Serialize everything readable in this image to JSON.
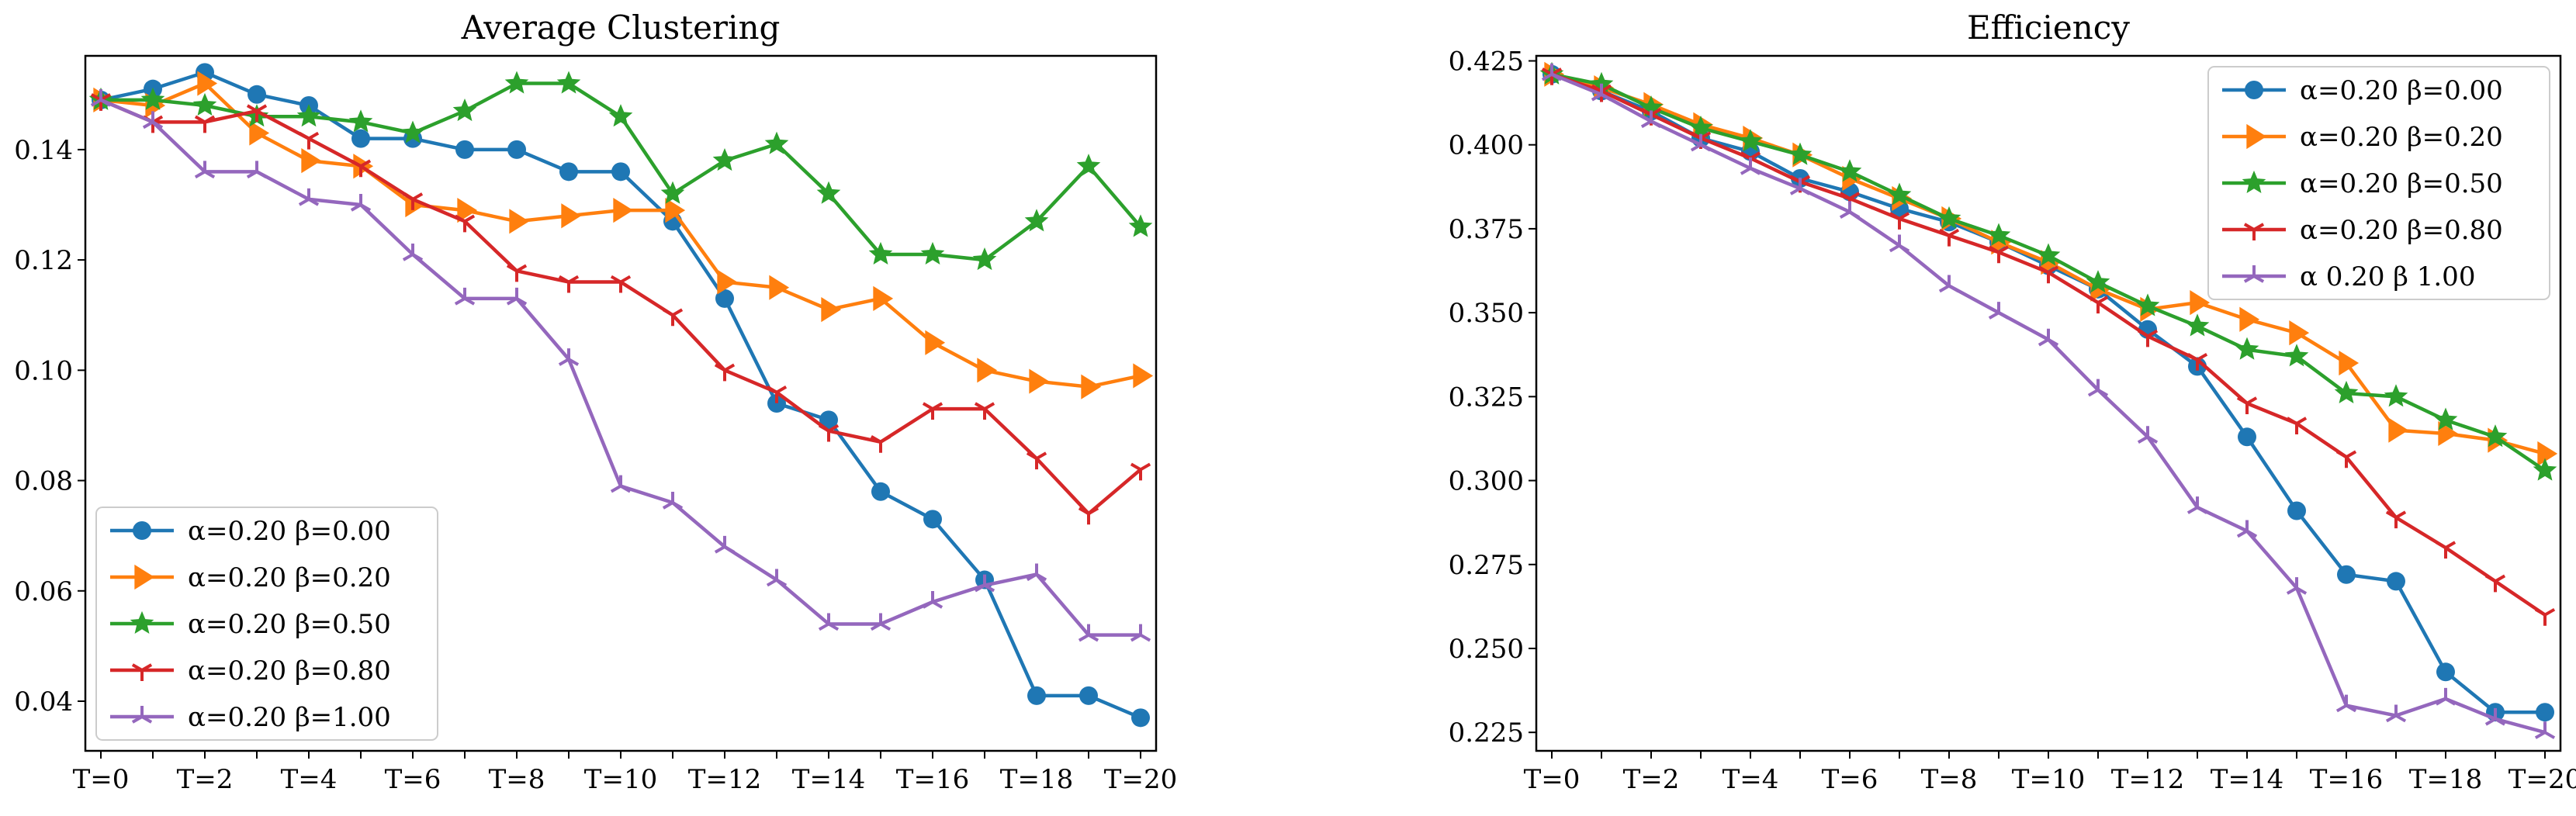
{
  "chart_data": [
    {
      "type": "line",
      "title": "Average Clustering",
      "xlabel": "",
      "ylabel": "",
      "categories": [
        "T=0",
        "T=1",
        "T=2",
        "T=3",
        "T=4",
        "T=5",
        "T=6",
        "T=7",
        "T=8",
        "T=9",
        "T=10",
        "T=11",
        "T=12",
        "T=13",
        "T=14",
        "T=15",
        "T=16",
        "T=17",
        "T=18",
        "T=19",
        "T=20"
      ],
      "x_tick_labels": [
        "T=0",
        "T=2",
        "T=4",
        "T=6",
        "T=8",
        "T=10",
        "T=12",
        "T=14",
        "T=16",
        "T=18",
        "T=20"
      ],
      "ylim": [
        0.031,
        0.157
      ],
      "y_ticks": [
        0.04,
        0.06,
        0.08,
        0.1,
        0.12,
        0.14
      ],
      "y_tick_labels": [
        "0.04",
        "0.06",
        "0.08",
        "0.10",
        "0.12",
        "0.14"
      ],
      "legend_position": "lower-left",
      "series": [
        {
          "name": "α=0.20 β=0.00",
          "color": "#1f77b4",
          "marker": "circle",
          "values": [
            0.149,
            0.151,
            0.154,
            0.15,
            0.148,
            0.142,
            0.142,
            0.14,
            0.14,
            0.136,
            0.136,
            0.127,
            0.113,
            0.094,
            0.091,
            0.078,
            0.073,
            0.062,
            0.041,
            0.041,
            0.037
          ]
        },
        {
          "name": "α=0.20 β=0.20",
          "color": "#ff7f0e",
          "marker": "triangle-right",
          "values": [
            0.149,
            0.148,
            0.152,
            0.143,
            0.138,
            0.137,
            0.13,
            0.129,
            0.127,
            0.128,
            0.129,
            0.129,
            0.116,
            0.115,
            0.111,
            0.113,
            0.105,
            0.1,
            0.098,
            0.097,
            0.099
          ]
        },
        {
          "name": "α=0.20 β=0.50",
          "color": "#2ca02c",
          "marker": "star",
          "values": [
            0.149,
            0.149,
            0.148,
            0.146,
            0.146,
            0.145,
            0.143,
            0.147,
            0.152,
            0.152,
            0.146,
            0.132,
            0.138,
            0.141,
            0.132,
            0.121,
            0.121,
            0.12,
            0.127,
            0.137,
            0.126
          ]
        },
        {
          "name": "α=0.20 β=0.80",
          "color": "#d62728",
          "marker": "tri-down",
          "values": [
            0.149,
            0.145,
            0.145,
            0.147,
            0.142,
            0.137,
            0.131,
            0.127,
            0.118,
            0.116,
            0.116,
            0.11,
            0.1,
            0.096,
            0.089,
            0.087,
            0.093,
            0.093,
            0.084,
            0.074,
            0.082
          ]
        },
        {
          "name": "α=0.20 β=1.00",
          "color": "#9467bd",
          "marker": "tri-up",
          "values": [
            0.149,
            0.145,
            0.136,
            0.136,
            0.131,
            0.13,
            0.121,
            0.113,
            0.113,
            0.102,
            0.079,
            0.076,
            0.068,
            0.062,
            0.054,
            0.054,
            0.058,
            0.061,
            0.063,
            0.052,
            0.052
          ]
        }
      ]
    },
    {
      "type": "line",
      "title": "Efficiency",
      "xlabel": "",
      "ylabel": "",
      "categories": [
        "T=0",
        "T=1",
        "T=2",
        "T=3",
        "T=4",
        "T=5",
        "T=6",
        "T=7",
        "T=8",
        "T=9",
        "T=10",
        "T=11",
        "T=12",
        "T=13",
        "T=14",
        "T=15",
        "T=16",
        "T=17",
        "T=18",
        "T=19",
        "T=20"
      ],
      "x_tick_labels": [
        "T=0",
        "T=2",
        "T=4",
        "T=6",
        "T=8",
        "T=10",
        "T=12",
        "T=14",
        "T=16",
        "T=18",
        "T=20"
      ],
      "ylim": [
        0.2195,
        0.4265
      ],
      "y_ticks": [
        0.225,
        0.25,
        0.275,
        0.3,
        0.325,
        0.35,
        0.375,
        0.4,
        0.425
      ],
      "y_tick_labels": [
        "0.225",
        "0.250",
        "0.275",
        "0.300",
        "0.325",
        "0.350",
        "0.375",
        "0.400",
        "0.425"
      ],
      "legend_position": "upper-right",
      "series": [
        {
          "name": "α=0.20 β=0.00",
          "color": "#1f77b4",
          "marker": "circle",
          "values": [
            0.421,
            0.416,
            0.41,
            0.402,
            0.398,
            0.39,
            0.386,
            0.381,
            0.377,
            0.371,
            0.364,
            0.357,
            0.345,
            0.334,
            0.313,
            0.291,
            0.272,
            0.27,
            0.243,
            0.231,
            0.231
          ]
        },
        {
          "name": "α=0.20 β=0.20",
          "color": "#ff7f0e",
          "marker": "triangle-right",
          "values": [
            0.421,
            0.417,
            0.412,
            0.406,
            0.402,
            0.397,
            0.39,
            0.384,
            0.378,
            0.371,
            0.365,
            0.357,
            0.351,
            0.353,
            0.348,
            0.344,
            0.335,
            0.315,
            0.314,
            0.312,
            0.308
          ]
        },
        {
          "name": "α=0.20 β=0.50",
          "color": "#2ca02c",
          "marker": "star",
          "values": [
            0.421,
            0.418,
            0.411,
            0.405,
            0.401,
            0.397,
            0.392,
            0.385,
            0.378,
            0.373,
            0.367,
            0.359,
            0.352,
            0.346,
            0.339,
            0.337,
            0.326,
            0.325,
            0.318,
            0.313,
            0.303
          ]
        },
        {
          "name": "α=0.20 β=0.80",
          "color": "#d62728",
          "marker": "tri-down",
          "values": [
            0.421,
            0.416,
            0.409,
            0.402,
            0.396,
            0.389,
            0.384,
            0.378,
            0.373,
            0.368,
            0.362,
            0.353,
            0.343,
            0.336,
            0.323,
            0.317,
            0.307,
            0.289,
            0.28,
            0.27,
            0.26
          ]
        },
        {
          "name": "α 0.20 β 1.00",
          "color": "#9467bd",
          "marker": "tri-up",
          "values": [
            0.421,
            0.415,
            0.407,
            0.4,
            0.393,
            0.387,
            0.38,
            0.37,
            0.358,
            0.35,
            0.342,
            0.327,
            0.313,
            0.292,
            0.285,
            0.268,
            0.233,
            0.23,
            0.235,
            0.229,
            0.225
          ]
        }
      ]
    }
  ]
}
